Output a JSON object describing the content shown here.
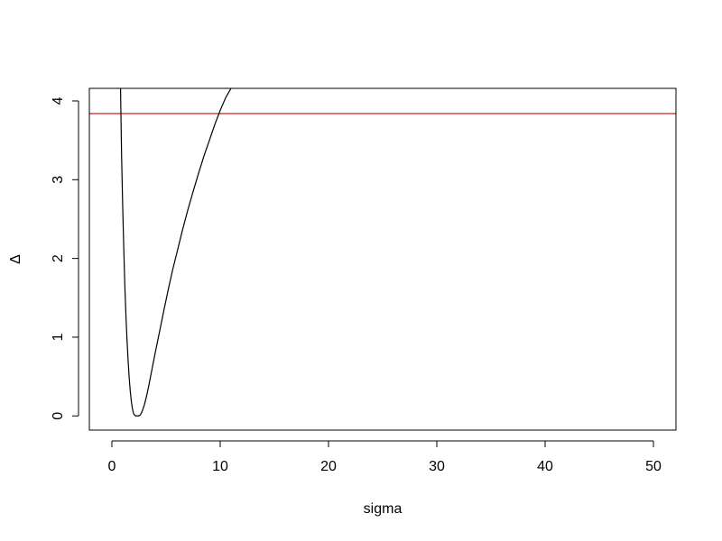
{
  "chart_data": {
    "type": "line",
    "title": "",
    "xlabel": "sigma",
    "ylabel": "Δ",
    "xlim": [
      -2.08,
      52.08
    ],
    "ylim": [
      -0.18,
      4.16
    ],
    "x_ticks": [
      0,
      10,
      20,
      30,
      40,
      50
    ],
    "x_tick_labels": [
      "0",
      "10",
      "20",
      "30",
      "40",
      "50"
    ],
    "y_ticks": [
      0,
      1,
      2,
      3,
      4
    ],
    "y_tick_labels": [
      "0",
      "1",
      "2",
      "3",
      "4"
    ],
    "grid": false,
    "legend": "none",
    "series": [
      {
        "color": "#000000",
        "x": [
          0.8,
          0.9,
          1.0,
          1.1,
          1.2,
          1.3,
          1.4,
          1.5,
          1.6,
          1.7,
          1.8,
          1.9,
          2.0,
          2.1,
          2.2,
          2.3,
          2.4,
          2.5,
          2.6,
          2.7,
          2.8,
          3.0,
          3.2,
          3.4,
          3.6,
          3.8,
          4.0,
          4.4,
          4.8,
          5.2,
          5.6,
          6.0,
          6.5,
          7.0,
          7.5,
          8.0,
          8.5,
          9.0,
          9.5,
          10.0,
          10.5,
          11.0
        ],
        "y": [
          4.16,
          3.28,
          2.66,
          2.12,
          1.64,
          1.27,
          0.96,
          0.7,
          0.48,
          0.31,
          0.18,
          0.09,
          0.03,
          0.01,
          0.0,
          0.0,
          0.0,
          0.0,
          0.01,
          0.03,
          0.06,
          0.14,
          0.25,
          0.38,
          0.52,
          0.66,
          0.8,
          1.07,
          1.34,
          1.6,
          1.85,
          2.07,
          2.35,
          2.61,
          2.85,
          3.08,
          3.3,
          3.5,
          3.7,
          3.88,
          4.04,
          4.16
        ]
      }
    ],
    "hlines": [
      {
        "y": 3.84,
        "color": "#dd0000"
      }
    ]
  }
}
